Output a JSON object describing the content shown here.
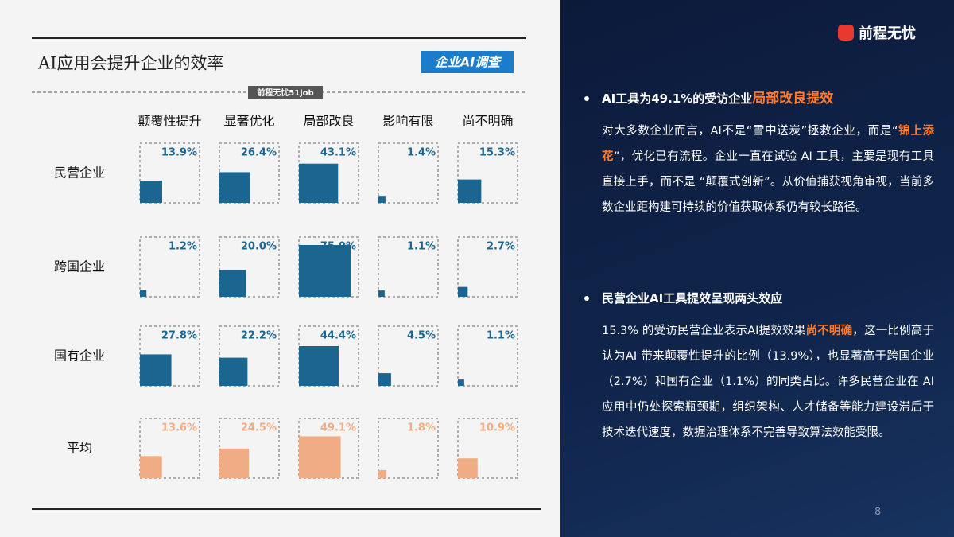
{
  "chart_data": {
    "type": "square-grid",
    "title": "AI应用会提升企业的效率",
    "categories": [
      "颠覆性提升",
      "显著优化",
      "局部改良",
      "影响有限",
      "尚不明确"
    ],
    "series": [
      {
        "name": "民营企业",
        "color": "#1b6690",
        "values": [
          13.9,
          26.4,
          43.1,
          1.4,
          15.3
        ],
        "value_labels": [
          "13.9%",
          "26.4%",
          "43.1%",
          "1.4%",
          "15.3%"
        ]
      },
      {
        "name": "跨国企业",
        "color": "#1b6690",
        "values": [
          1.2,
          20.0,
          75.0,
          1.1,
          2.7
        ],
        "value_labels": [
          "1.2%",
          "20.0%",
          "75.0%",
          "1.1%",
          "2.7%"
        ]
      },
      {
        "name": "国有企业",
        "color": "#1b6690",
        "values": [
          27.8,
          22.2,
          44.4,
          4.5,
          1.1
        ],
        "value_labels": [
          "27.8%",
          "22.2%",
          "44.4%",
          "4.5%",
          "1.1%"
        ]
      },
      {
        "name": "平均",
        "color": "#efac85",
        "values": [
          13.6,
          24.5,
          49.1,
          1.8,
          10.9
        ],
        "value_labels": [
          "13.6%",
          "24.5%",
          "49.1%",
          "1.8%",
          "10.9%"
        ]
      }
    ]
  },
  "tag": "企业AI调查",
  "source": "前程无忧51job",
  "brand": "前程无忧",
  "sections": [
    {
      "heading": [
        {
          "text": "AI工具为49.1%的受访企业"
        },
        {
          "text": "局部改良提效",
          "highlight": true
        }
      ],
      "body": [
        {
          "text": "对大多数企业而言，AI不是“雪中送炭”拯救企业，而是“"
        },
        {
          "text": "锦上添花",
          "highlight": true
        },
        {
          "text": "”，优化已有流程。企业一直在试验 AI 工具，主要是现有工具直接上手，而不是 “颠覆式创新”。从价值捕获视角审视，当前多数企业距构建可持续的价值获取体系仍有较长路径。"
        }
      ]
    },
    {
      "heading": [
        {
          "text": "民营企业AI工具提效呈现两头效应"
        }
      ],
      "body": [
        {
          "text": "15.3% 的受访民营企业表示AI提效效果"
        },
        {
          "text": "尚不明确",
          "highlight": true
        },
        {
          "text": "，这一比例高于认为AI 带来颠覆性提升的比例（13.9%），也显著高于跨国企业（2.7%）和国有企业（1.1%）的同类占比。许多民营企业在 AI 应用中仍处探索瓶颈期，组织架构、人才储备等能力建设滞后于技术迭代速度，数据治理体系不完善导致算法效能受限。"
        }
      ]
    }
  ],
  "page_number": 8
}
